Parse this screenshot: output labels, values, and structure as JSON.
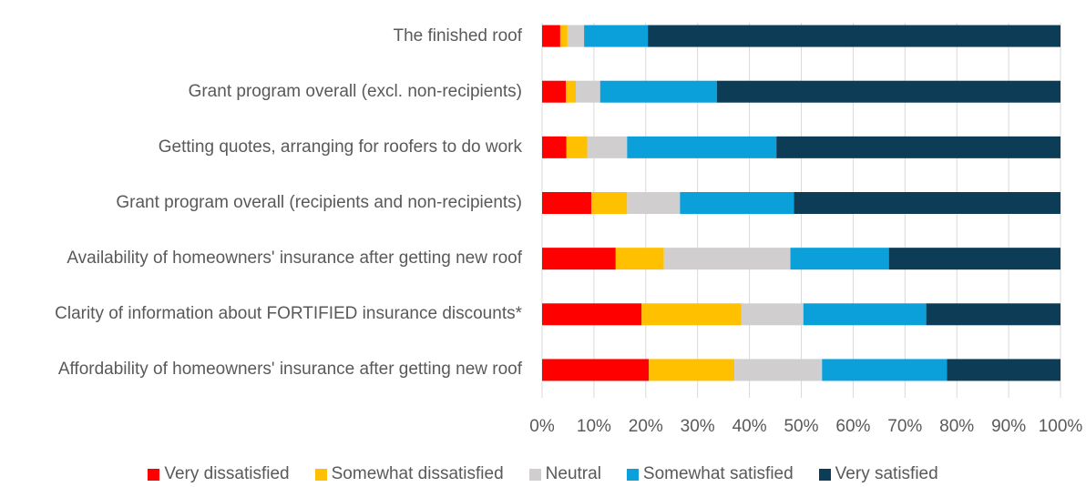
{
  "chart_data": {
    "type": "stacked_barh",
    "categories": [
      "The finished roof",
      "Grant program overall (excl. non-recipients)",
      "Getting quotes, arranging for roofers to do work",
      "Grant program overall (recipients and non-recipients)",
      "Availability of homeowners' insurance after getting new roof",
      "Clarity of information about FORTIFIED insurance discounts*",
      "Affordability of homeowners' insurance after getting new roof"
    ],
    "series": [
      {
        "name": "Very dissatisfied",
        "color": "#ff0000",
        "values": [
          3.5,
          4.6,
          4.7,
          9.5,
          14.2,
          19.2,
          20.6
        ]
      },
      {
        "name": "Somewhat dissatisfied",
        "color": "#ffc000",
        "values": [
          1.4,
          1.9,
          4.0,
          6.9,
          9.3,
          19.2,
          16.5
        ]
      },
      {
        "name": "Neutral",
        "color": "#d0cece",
        "values": [
          3.2,
          4.7,
          7.7,
          10.2,
          24.4,
          12.0,
          16.9
        ]
      },
      {
        "name": "Somewhat satisfied",
        "color": "#0ba0da",
        "values": [
          12.3,
          22.5,
          28.8,
          22.0,
          19.0,
          23.7,
          24.1
        ]
      },
      {
        "name": "Very satisfied",
        "color": "#0d3d56",
        "values": [
          79.6,
          66.3,
          54.8,
          51.4,
          33.1,
          25.9,
          21.9
        ]
      }
    ],
    "xlim": [
      0,
      100
    ],
    "xticks": [
      {
        "value": 0,
        "label": "0%"
      },
      {
        "value": 10,
        "label": "10%"
      },
      {
        "value": 20,
        "label": "20%"
      },
      {
        "value": 30,
        "label": "30%"
      },
      {
        "value": 40,
        "label": "40%"
      },
      {
        "value": 50,
        "label": "50%"
      },
      {
        "value": 60,
        "label": "60%"
      },
      {
        "value": 70,
        "label": "70%"
      },
      {
        "value": 80,
        "label": "80%"
      },
      {
        "value": 90,
        "label": "90%"
      },
      {
        "value": 100,
        "label": "100%"
      }
    ],
    "grid": true
  }
}
